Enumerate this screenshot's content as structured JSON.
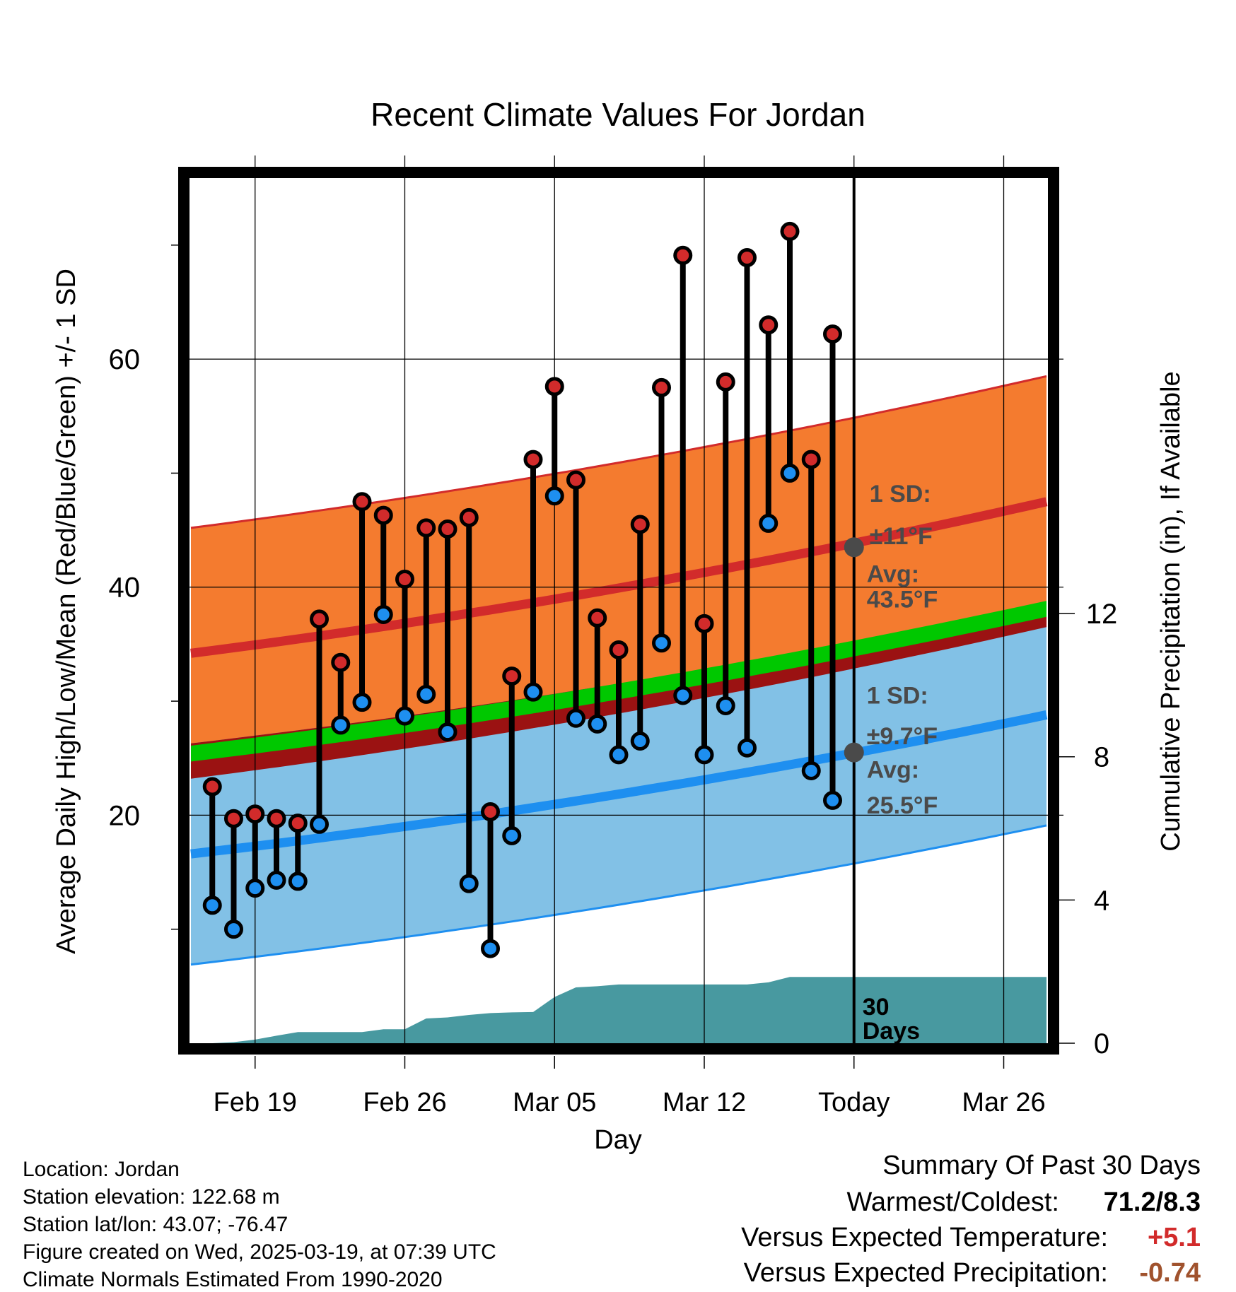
{
  "chart_data": {
    "type": "line",
    "title": "Recent Climate Values For Jordan",
    "xlabel": "Day",
    "ylabel": "Average Daily High/Low/Mean (Red/Blue/Green) +/- 1 SD",
    "y2label": "Cumulative Precipitation (in), If Available",
    "x_tick_labels": [
      "Feb 19",
      "Feb 26",
      "Mar 05",
      "Mar 12",
      "Today",
      "Mar 26"
    ],
    "x_tick_dates": [
      "2025-02-19",
      "2025-02-26",
      "2025-03-05",
      "2025-03-12",
      "2025-03-19",
      "2025-03-26"
    ],
    "xlim": [
      "2025-02-16",
      "2025-03-28"
    ],
    "today": "2025-03-19",
    "y_ticks": [
      20,
      40,
      60
    ],
    "y_minor_ticks": [
      10,
      30,
      50,
      70
    ],
    "ylim": [
      0,
      76
    ],
    "y2_ticks": [
      0,
      4,
      8,
      12
    ],
    "y2lim": [
      0,
      24.2
    ],
    "grid": true,
    "series": [
      {
        "name": "High",
        "color": "#d22b2b",
        "dates": [
          "2025-02-17",
          "2025-02-18",
          "2025-02-19",
          "2025-02-20",
          "2025-02-21",
          "2025-02-22",
          "2025-02-23",
          "2025-02-24",
          "2025-02-25",
          "2025-02-26",
          "2025-02-27",
          "2025-02-28",
          "2025-03-01",
          "2025-03-02",
          "2025-03-03",
          "2025-03-04",
          "2025-03-05",
          "2025-03-06",
          "2025-03-07",
          "2025-03-08",
          "2025-03-09",
          "2025-03-10",
          "2025-03-11",
          "2025-03-12",
          "2025-03-13",
          "2025-03-14",
          "2025-03-15",
          "2025-03-16",
          "2025-03-17",
          "2025-03-18"
        ],
        "values": [
          22.5,
          19.7,
          20.1,
          19.7,
          19.3,
          37.2,
          33.4,
          47.5,
          46.3,
          40.7,
          45.2,
          45.1,
          46.1,
          20.3,
          32.2,
          51.2,
          57.6,
          49.4,
          37.3,
          34.5,
          45.5,
          57.5,
          69.1,
          36.8,
          58.0,
          68.9,
          63.0,
          71.2,
          51.2,
          62.2
        ]
      },
      {
        "name": "Low",
        "color": "#1e8ff0",
        "dates": [
          "2025-02-17",
          "2025-02-18",
          "2025-02-19",
          "2025-02-20",
          "2025-02-21",
          "2025-02-22",
          "2025-02-23",
          "2025-02-24",
          "2025-02-25",
          "2025-02-26",
          "2025-02-27",
          "2025-02-28",
          "2025-03-01",
          "2025-03-02",
          "2025-03-03",
          "2025-03-04",
          "2025-03-05",
          "2025-03-06",
          "2025-03-07",
          "2025-03-08",
          "2025-03-09",
          "2025-03-10",
          "2025-03-11",
          "2025-03-12",
          "2025-03-13",
          "2025-03-14",
          "2025-03-15",
          "2025-03-16",
          "2025-03-17",
          "2025-03-18"
        ],
        "values": [
          12.1,
          10.0,
          13.6,
          14.3,
          14.2,
          19.2,
          27.9,
          29.9,
          37.6,
          28.7,
          30.6,
          27.3,
          14.0,
          8.3,
          18.2,
          30.8,
          48.0,
          28.5,
          28.0,
          25.3,
          26.5,
          35.1,
          30.5,
          25.3,
          29.6,
          25.9,
          45.6,
          50.0,
          23.9,
          21.3
        ]
      }
    ],
    "normals": {
      "dates": [
        "2025-02-16",
        "2025-03-28"
      ],
      "high_avg": [
        34.2,
        47.5
      ],
      "high_avg_today": 43.5,
      "high_sd": 11,
      "low_avg": [
        16.6,
        28.8
      ],
      "low_avg_today": 25.5,
      "low_sd": 9.7,
      "mean_avg": [
        25.4,
        38.1
      ]
    },
    "precipitation": {
      "dates": [
        "2025-02-17",
        "2025-02-18",
        "2025-02-19",
        "2025-02-20",
        "2025-02-21",
        "2025-02-22",
        "2025-02-23",
        "2025-02-24",
        "2025-02-25",
        "2025-02-26",
        "2025-02-27",
        "2025-02-28",
        "2025-03-01",
        "2025-03-02",
        "2025-03-03",
        "2025-03-04",
        "2025-03-05",
        "2025-03-06",
        "2025-03-07",
        "2025-03-08",
        "2025-03-09",
        "2025-03-10",
        "2025-03-11",
        "2025-03-12",
        "2025-03-13",
        "2025-03-14",
        "2025-03-15",
        "2025-03-16",
        "2025-03-17",
        "2025-03-18",
        "2025-03-19"
      ],
      "values": [
        0.0,
        0.03,
        0.1,
        0.21,
        0.31,
        0.31,
        0.31,
        0.31,
        0.39,
        0.39,
        0.69,
        0.72,
        0.79,
        0.84,
        0.86,
        0.87,
        1.29,
        1.56,
        1.59,
        1.64,
        1.64,
        1.64,
        1.64,
        1.64,
        1.64,
        1.64,
        1.7,
        1.85,
        1.85,
        1.85,
        1.85
      ]
    },
    "annotations": {
      "high_sd_label": "1 SD:",
      "high_sd_value": "±11°F",
      "high_avg_label": "Avg:",
      "high_avg_value": "43.5°F",
      "low_sd_label": "1 SD:",
      "low_sd_value": "±9.7°F",
      "low_avg_label": "Avg:",
      "low_avg_value": "25.5°F",
      "precip_label_1": "30",
      "precip_label_2": "Days"
    },
    "colors": {
      "high_band": "#f47b2f",
      "high_line": "#d22b2b",
      "low_band": "#82c1e6",
      "low_line": "#1e8ff0",
      "mean_band": "#00c800",
      "overlap_band": "#9b1212",
      "precip": "#4899a0",
      "annotation_text": "#4a4a4a"
    }
  },
  "info": {
    "location": "Location: Jordan",
    "elevation": "Station elevation: 122.68 m",
    "latlon": "Station lat/lon: 43.07; -76.47",
    "created": "Figure created on Wed, 2025-03-19, at 07:39 UTC",
    "normals": "Climate Normals Estimated From 1990-2020"
  },
  "summary": {
    "title": "Summary Of Past 30 Days",
    "warmest_label": "Warmest/Coldest:",
    "warmest_value": "71.2/8.3",
    "temp_label": "Versus Expected Temperature:",
    "temp_value": "+5.1",
    "temp_color": "#d22b2b",
    "precip_label": "Versus Expected Precipitation:",
    "precip_value": "-0.74",
    "precip_color": "#a0522d"
  }
}
